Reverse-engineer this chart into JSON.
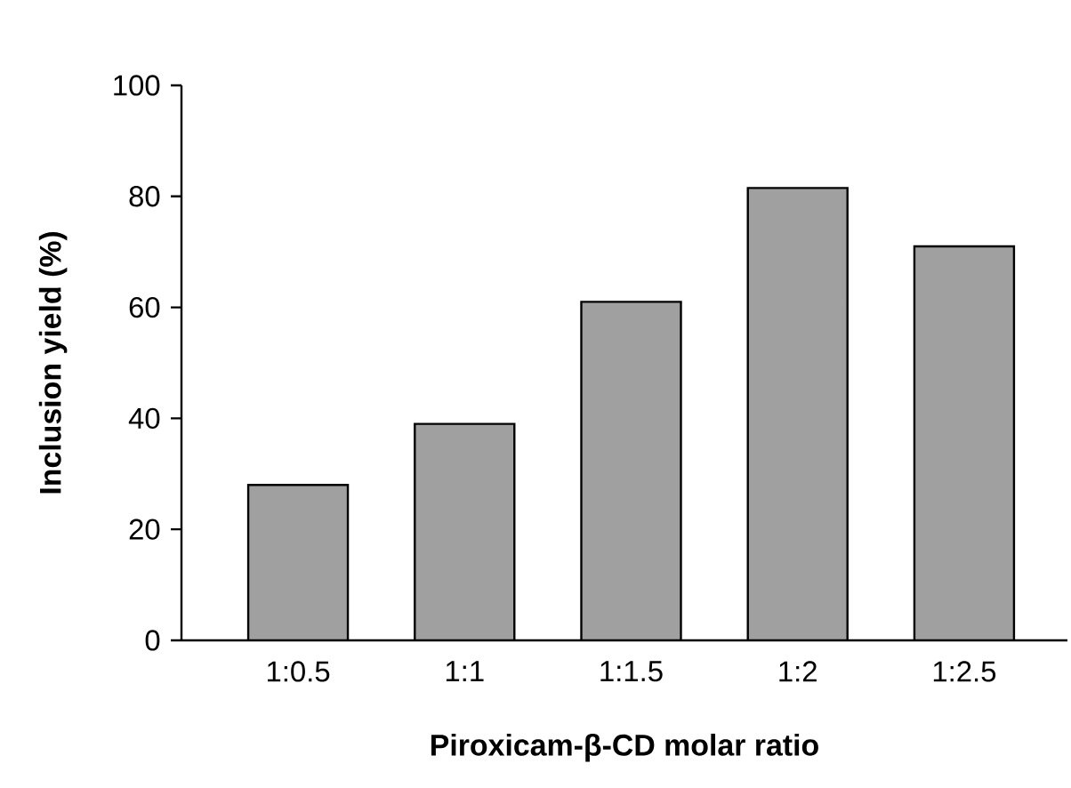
{
  "chart_data": {
    "type": "bar",
    "xlabel": "Piroxicam-β-CD molar ratio",
    "ylabel": "Inclusion yield (%)",
    "categories": [
      "1:0.5",
      "1:1",
      "1:1.5",
      "1:2",
      "1:2.5"
    ],
    "values": [
      28,
      39,
      61,
      81.5,
      71
    ],
    "color": "#a0a0a0",
    "ylim": [
      0,
      100
    ],
    "yticks": [
      0,
      20,
      40,
      60,
      80,
      100
    ],
    "grid": false
  }
}
